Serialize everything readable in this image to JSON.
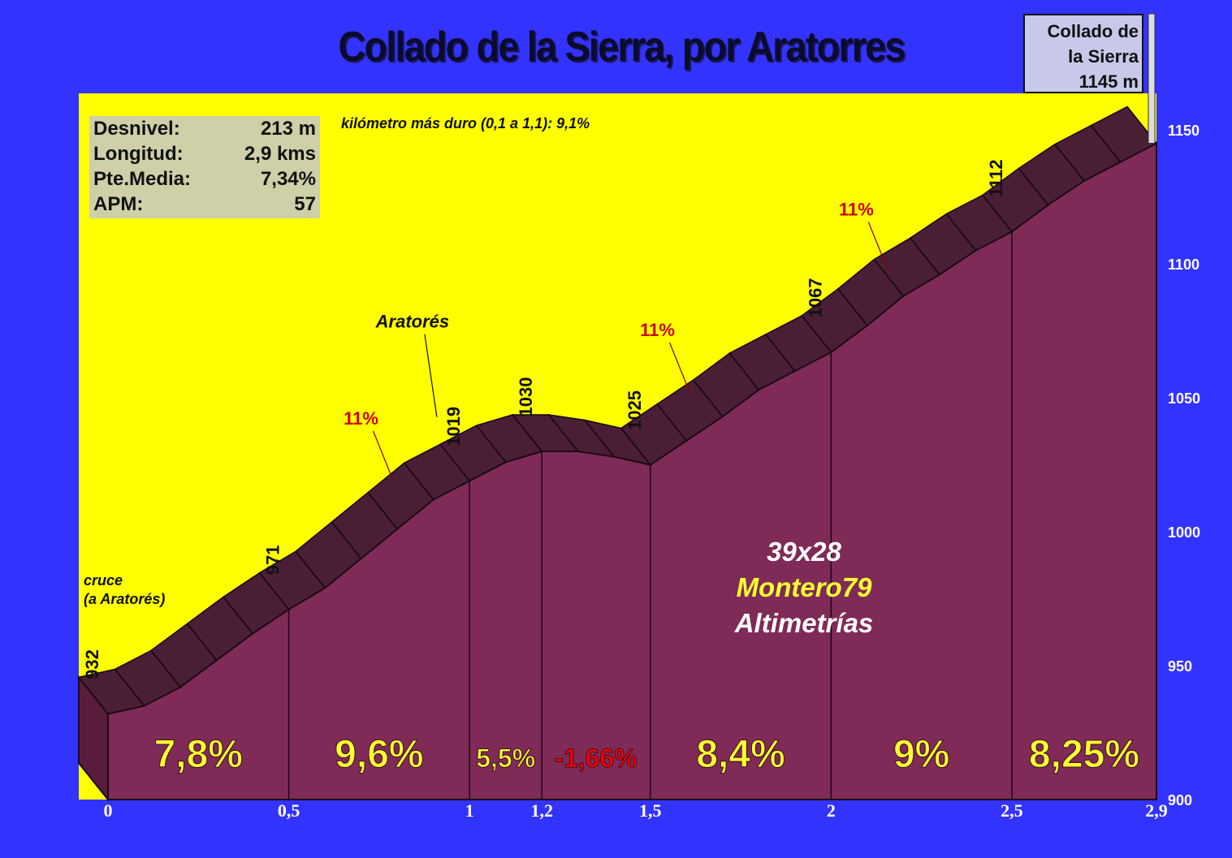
{
  "title": "Collado de la Sierra, por Aratorres",
  "stats": [
    {
      "label": "Desnivel:",
      "value": "213 m"
    },
    {
      "label": "Longitud:",
      "value": "2,9 kms"
    },
    {
      "label": "Pte.Media:",
      "value": "7,34%"
    },
    {
      "label": "APM:",
      "value": "57"
    }
  ],
  "hardest_km": "kilómetro más duro (0,1 a 1,1):  9,1%",
  "summit_sign": [
    "Collado de",
    "la Sierra",
    "1145 m"
  ],
  "start_note": [
    "cruce",
    "(a Aratorés)"
  ],
  "credits": {
    "gear": "39x28",
    "author": "Montero79",
    "site": "Altimetrías"
  },
  "colors": {
    "background": "#3333ff",
    "sky": "#ffff00",
    "profile_front": "#7f2a57",
    "profile_top": "#4a1f36",
    "segment_label": "#ffff33",
    "negative_label": "#ff0000",
    "gradient_label": "#cc0000"
  },
  "chart_data": {
    "type": "area",
    "title": "Collado de la Sierra, por Aratorres",
    "xlabel": "",
    "ylabel": "",
    "xlim": [
      0,
      2.9
    ],
    "ylim": [
      900,
      1150
    ],
    "x_ticks": [
      {
        "value": 0,
        "label": "0"
      },
      {
        "value": 0.5,
        "label": "0,5"
      },
      {
        "value": 1,
        "label": "1"
      },
      {
        "value": 1.2,
        "label": "1,2"
      },
      {
        "value": 1.5,
        "label": "1,5"
      },
      {
        "value": 2,
        "label": "2"
      },
      {
        "value": 2.5,
        "label": "2,5"
      },
      {
        "value": 2.9,
        "label": "2,9"
      }
    ],
    "y_ticks": [
      900,
      950,
      1000,
      1050,
      1100,
      1150
    ],
    "profile": [
      {
        "x": 0,
        "y": 932
      },
      {
        "x": 0.1,
        "y": 935
      },
      {
        "x": 0.2,
        "y": 942
      },
      {
        "x": 0.3,
        "y": 952
      },
      {
        "x": 0.4,
        "y": 962
      },
      {
        "x": 0.5,
        "y": 971
      },
      {
        "x": 0.6,
        "y": 979
      },
      {
        "x": 0.7,
        "y": 990
      },
      {
        "x": 0.8,
        "y": 1001
      },
      {
        "x": 0.9,
        "y": 1012
      },
      {
        "x": 1.0,
        "y": 1019
      },
      {
        "x": 1.1,
        "y": 1026
      },
      {
        "x": 1.2,
        "y": 1030
      },
      {
        "x": 1.3,
        "y": 1030
      },
      {
        "x": 1.4,
        "y": 1028
      },
      {
        "x": 1.5,
        "y": 1025
      },
      {
        "x": 1.6,
        "y": 1034
      },
      {
        "x": 1.7,
        "y": 1043
      },
      {
        "x": 1.8,
        "y": 1053
      },
      {
        "x": 1.9,
        "y": 1060
      },
      {
        "x": 2.0,
        "y": 1067
      },
      {
        "x": 2.1,
        "y": 1077
      },
      {
        "x": 2.2,
        "y": 1088
      },
      {
        "x": 2.3,
        "y": 1096
      },
      {
        "x": 2.4,
        "y": 1105
      },
      {
        "x": 2.5,
        "y": 1112
      },
      {
        "x": 2.6,
        "y": 1122
      },
      {
        "x": 2.7,
        "y": 1131
      },
      {
        "x": 2.8,
        "y": 1138
      },
      {
        "x": 2.9,
        "y": 1145
      }
    ],
    "point_labels": [
      {
        "x": 0,
        "y": 932,
        "label": "932"
      },
      {
        "x": 0.5,
        "y": 971,
        "label": "971"
      },
      {
        "x": 1.0,
        "y": 1019,
        "label": "1019"
      },
      {
        "x": 1.2,
        "y": 1030,
        "label": "1030"
      },
      {
        "x": 1.5,
        "y": 1025,
        "label": "1025"
      },
      {
        "x": 2.0,
        "y": 1067,
        "label": "1067"
      },
      {
        "x": 2.5,
        "y": 1112,
        "label": "1112"
      }
    ],
    "segments": [
      {
        "from": 0,
        "to": 0.5,
        "label": "7,8%"
      },
      {
        "from": 0.5,
        "to": 1.0,
        "label": "9,6%"
      },
      {
        "from": 1.0,
        "to": 1.2,
        "label": "5,5%"
      },
      {
        "from": 1.2,
        "to": 1.5,
        "label": "-1,66%"
      },
      {
        "from": 1.5,
        "to": 2.0,
        "label": "8,4%"
      },
      {
        "from": 2.0,
        "to": 2.5,
        "label": "9%"
      },
      {
        "from": 2.5,
        "to": 2.9,
        "label": "8,25%"
      }
    ],
    "annotations": [
      {
        "x": 0.83,
        "y": 1012,
        "label": "11%"
      },
      {
        "x": 1.65,
        "y": 1045,
        "label": "11%"
      },
      {
        "x": 2.2,
        "y": 1090,
        "label": "11%"
      },
      {
        "x": 0.95,
        "y": 1036,
        "label": "Aratorés"
      }
    ]
  }
}
